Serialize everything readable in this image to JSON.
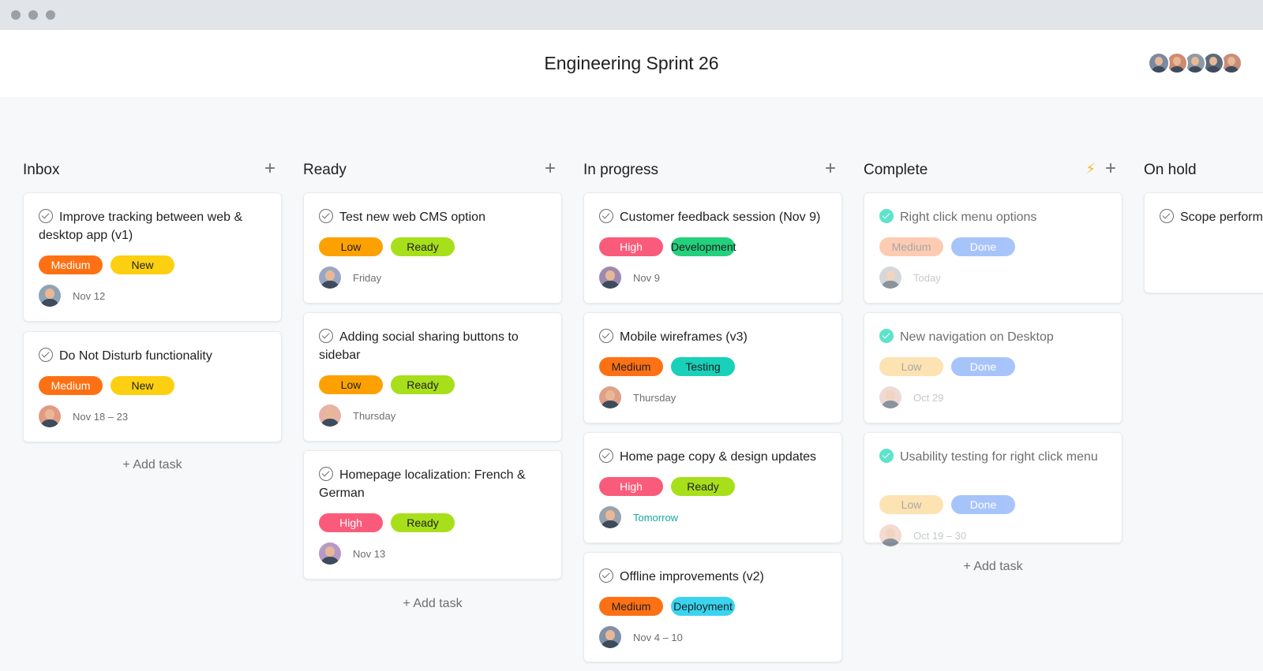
{
  "window": {
    "traffic_lights": [
      "close",
      "minimize",
      "zoom"
    ]
  },
  "project": {
    "title": "Engineering Sprint 26",
    "members": [
      {
        "avatar": "member-avatar",
        "bg": "#7a8aa0"
      },
      {
        "avatar": "member-avatar",
        "bg": "#d08a6e"
      },
      {
        "avatar": "member-avatar",
        "bg": "#8d9aa6"
      },
      {
        "avatar": "member-avatar",
        "bg": "#5a6b7c"
      },
      {
        "avatar": "member-avatar",
        "bg": "#c78e7a"
      }
    ]
  },
  "colors": {
    "Medium": "#fd7114",
    "New": "#fcd010",
    "Low": "#fca100",
    "Ready": "#a8df1b",
    "High": "#fa5b7b",
    "Development": "#23d07c",
    "Testing": "#19d0b9",
    "Deployment": "#3ad4ef",
    "Done": "#6e9ef8",
    "MediumDone": "#fcaa80",
    "LowDone": "#fdcf80"
  },
  "columns": [
    {
      "name": "Inbox",
      "add_label": "+",
      "bolt": false,
      "add_task": "+ Add task",
      "tasks": [
        {
          "title": "Improve tracking between web & desktop app (v1)",
          "tags": [
            {
              "label": "Medium",
              "color": "#fd7114",
              "text": "#ffffff"
            },
            {
              "label": "New",
              "color": "#fcd010",
              "text": "#1e1f21"
            }
          ],
          "due": "Nov 12",
          "avatar_bg": "#8fa3b5",
          "due_style": "normal",
          "done": false
        },
        {
          "title": "Do Not Disturb functionality",
          "tags": [
            {
              "label": "Medium",
              "color": "#fd7114",
              "text": "#ffffff"
            },
            {
              "label": "New",
              "color": "#fcd010",
              "text": "#1e1f21"
            }
          ],
          "due": "Nov 18 – 23",
          "avatar_bg": "#e39a82",
          "due_style": "normal",
          "done": false
        }
      ]
    },
    {
      "name": "Ready",
      "add_label": "+",
      "bolt": false,
      "add_task": "+ Add task",
      "tasks": [
        {
          "title": "Test new web CMS option",
          "tags": [
            {
              "label": "Low",
              "color": "#fca100",
              "text": "#1e1f21"
            },
            {
              "label": "Ready",
              "color": "#a8df1b",
              "text": "#1e1f21"
            }
          ],
          "due": "Friday",
          "avatar_bg": "#9aa7c4",
          "due_style": "normal",
          "done": false
        },
        {
          "title": "Adding social sharing buttons to sidebar",
          "tags": [
            {
              "label": "Low",
              "color": "#fca100",
              "text": "#1e1f21"
            },
            {
              "label": "Ready",
              "color": "#a8df1b",
              "text": "#1e1f21"
            }
          ],
          "due": "Thursday",
          "avatar_bg": "#e7b3a6",
          "due_style": "normal",
          "done": false
        },
        {
          "title": "Homepage localization: French & German",
          "tags": [
            {
              "label": "High",
              "color": "#fa5b7b",
              "text": "#ffffff"
            },
            {
              "label": "Ready",
              "color": "#a8df1b",
              "text": "#1e1f21"
            }
          ],
          "due": "Nov 13",
          "avatar_bg": "#b59ac7",
          "due_style": "normal",
          "done": false
        }
      ]
    },
    {
      "name": "In progress",
      "add_label": "+",
      "bolt": false,
      "add_task": "",
      "tasks": [
        {
          "title": "Customer feedback session (Nov 9)",
          "tags": [
            {
              "label": "High",
              "color": "#fa5b7b",
              "text": "#ffffff"
            },
            {
              "label": "Development",
              "color": "#23d07c",
              "text": "#1e1f21"
            }
          ],
          "due": "Nov 9",
          "avatar_bg": "#9d8ab0",
          "due_style": "normal",
          "done": false
        },
        {
          "title": "Mobile wireframes (v3)",
          "tags": [
            {
              "label": "Medium",
              "color": "#fd7114",
              "text": "#1e1f21"
            },
            {
              "label": "Testing",
              "color": "#19d0b9",
              "text": "#1e1f21"
            }
          ],
          "due": "Thursday",
          "avatar_bg": "#e0a088",
          "due_style": "normal",
          "done": false
        },
        {
          "title": "Home page copy & design updates",
          "tags": [
            {
              "label": "High",
              "color": "#fa5b7b",
              "text": "#ffffff"
            },
            {
              "label": "Ready",
              "color": "#a8df1b",
              "text": "#1e1f21"
            }
          ],
          "due": "Tomorrow",
          "avatar_bg": "#9aa3ad",
          "due_style": "soon",
          "done": false
        },
        {
          "title": "Offline improvements (v2)",
          "tags": [
            {
              "label": "Medium",
              "color": "#fd7114",
              "text": "#1e1f21"
            },
            {
              "label": "Deployment",
              "color": "#3ad4ef",
              "text": "#1e1f21"
            }
          ],
          "due": "Nov 4 – 10",
          "avatar_bg": "#7f90a8",
          "due_style": "normal",
          "done": false
        }
      ]
    },
    {
      "name": "Complete",
      "add_label": "+",
      "bolt": true,
      "add_task": "+ Add task",
      "tasks": [
        {
          "title": "Right click menu options",
          "tags": [
            {
              "label": "Medium",
              "color": "#fcaa80",
              "text": "#6d6e6f"
            },
            {
              "label": "Done",
              "color": "#6e9ef8",
              "text": "#ffffff"
            }
          ],
          "due": "Today",
          "avatar_bg": "#b8bec4",
          "due_style": "normal",
          "done": true
        },
        {
          "title": "New navigation on Desktop",
          "tags": [
            {
              "label": "Low",
              "color": "#fdcf80",
              "text": "#6d6e6f"
            },
            {
              "label": "Done",
              "color": "#6e9ef8",
              "text": "#ffffff"
            }
          ],
          "due": "Oct 29",
          "avatar_bg": "#e3c2b8",
          "due_style": "normal",
          "done": true
        },
        {
          "title": "Usability testing for right click menu",
          "tags": [
            {
              "label": "Low",
              "color": "#fdcf80",
              "text": "#6d6e6f"
            },
            {
              "label": "Done",
              "color": "#6e9ef8",
              "text": "#ffffff"
            }
          ],
          "due": "Oct 19 – 30",
          "avatar_bg": "#eec2b4",
          "due_style": "normal",
          "done": true
        }
      ]
    },
    {
      "name": "On hold",
      "add_label": "",
      "bolt": false,
      "add_task": "",
      "tasks": [
        {
          "title": "Scope performance for website",
          "tags": [],
          "due": "",
          "avatar_bg": "",
          "due_style": "normal",
          "done": false
        }
      ]
    }
  ]
}
